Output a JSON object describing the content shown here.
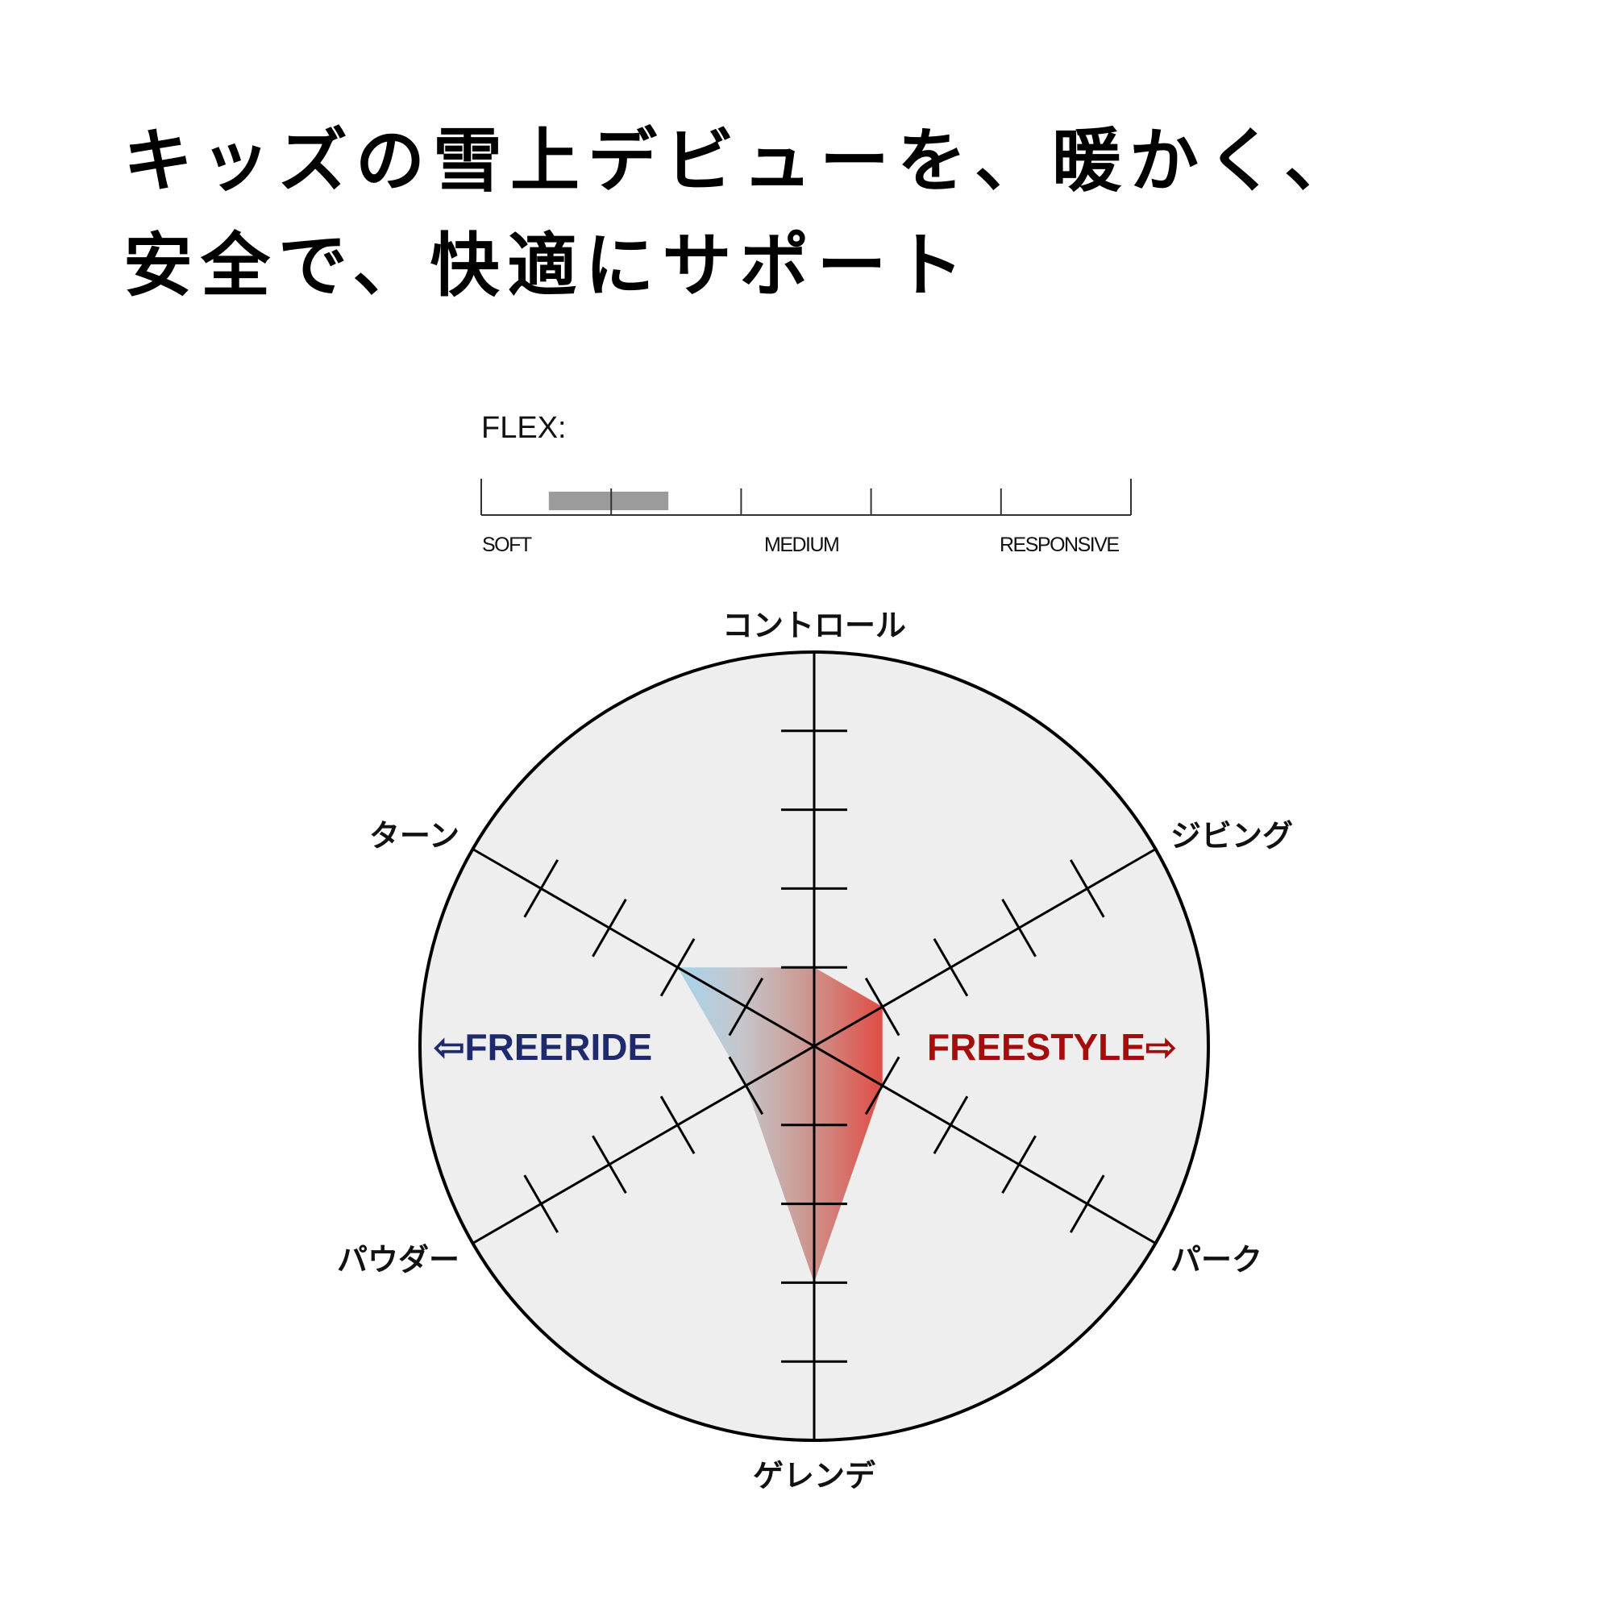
{
  "headline": {
    "line1": "キッズの雪上デビューを、暖かく、",
    "line2": "安全で、快適にサポート"
  },
  "flex": {
    "label": "FLEX:",
    "tick_labels": [
      "SOFT",
      "MEDIUM",
      "RESPONSIVE"
    ],
    "segments": 5,
    "range_fraction": [
      0.104,
      0.288
    ],
    "bar_color": "#9b9b9b"
  },
  "radar": {
    "max": 5,
    "ticks": 4,
    "axes": [
      {
        "label": "コントロール",
        "value": 1
      },
      {
        "label": "ジビング",
        "value": 1
      },
      {
        "label": "パーク",
        "value": 1
      },
      {
        "label": "ゲレンデ",
        "value": 3
      },
      {
        "label": "パウダー",
        "value": 1
      },
      {
        "label": "ターン",
        "value": 2
      }
    ],
    "background": "#eeeeee",
    "gradient": [
      "#a6d3ea",
      "#c6c7cc",
      "#cc9891",
      "#df5048"
    ]
  },
  "styles": {
    "freeride": {
      "label": "FREERIDE",
      "arrow": "⇦",
      "color": "#1f2a6c"
    },
    "freestyle": {
      "label": "FREESTYLE",
      "arrow": "⇨",
      "color": "#a50c0c"
    }
  }
}
